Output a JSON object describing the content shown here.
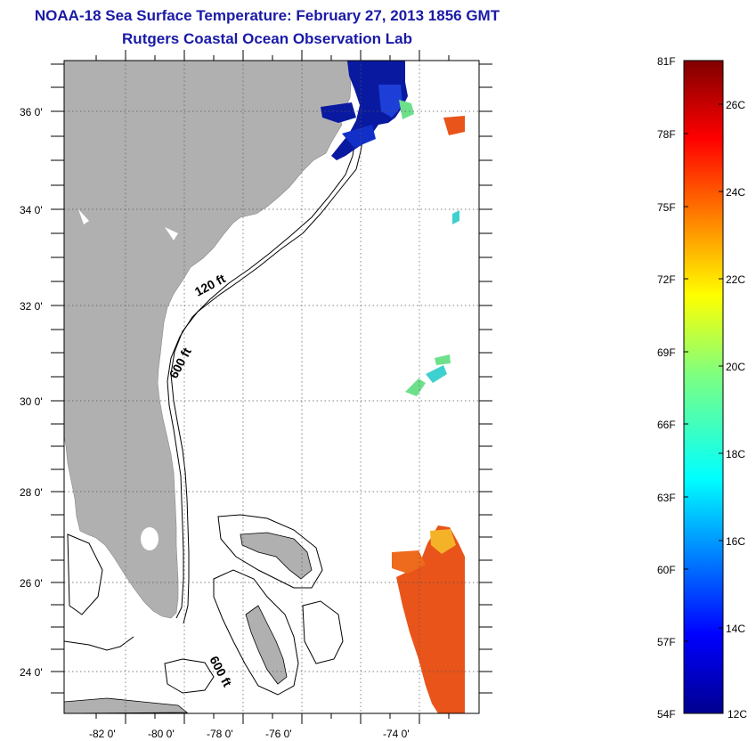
{
  "title": "NOAA-18 Sea Surface Temperature:  February 27, 2013 1856 GMT",
  "subtitle": "Rutgers Coastal Ocean Observation Lab",
  "map": {
    "lon_range": [
      -83,
      -73
    ],
    "lat_range": [
      23,
      37
    ],
    "lon_ticks": [
      "-82 0'",
      "-80 0'",
      "-78 0'",
      "-76 0'",
      "-74 0'"
    ],
    "lat_ticks": [
      "36 0'",
      "34 0'",
      "32 0'",
      "30 0'",
      "28 0'",
      "26 0'",
      "24 0'"
    ],
    "grid": "dotted",
    "contour_labels": [
      "120 ft",
      "600 ft",
      "600 ft"
    ],
    "colors": {
      "land": "#b0b0b0",
      "ocean": "#ffffff",
      "cold_water": "#0a1aa0",
      "warm_water": "#e8541a"
    }
  },
  "colorbar": {
    "fahrenheit_labels": [
      "81F",
      "78F",
      "75F",
      "72F",
      "69F",
      "66F",
      "63F",
      "60F",
      "57F",
      "54F"
    ],
    "celsius_labels": [
      "26C",
      "24C",
      "22C",
      "20C",
      "18C",
      "16C",
      "14C",
      "12C"
    ],
    "range_c": [
      12,
      27
    ],
    "colormap": "jet"
  }
}
